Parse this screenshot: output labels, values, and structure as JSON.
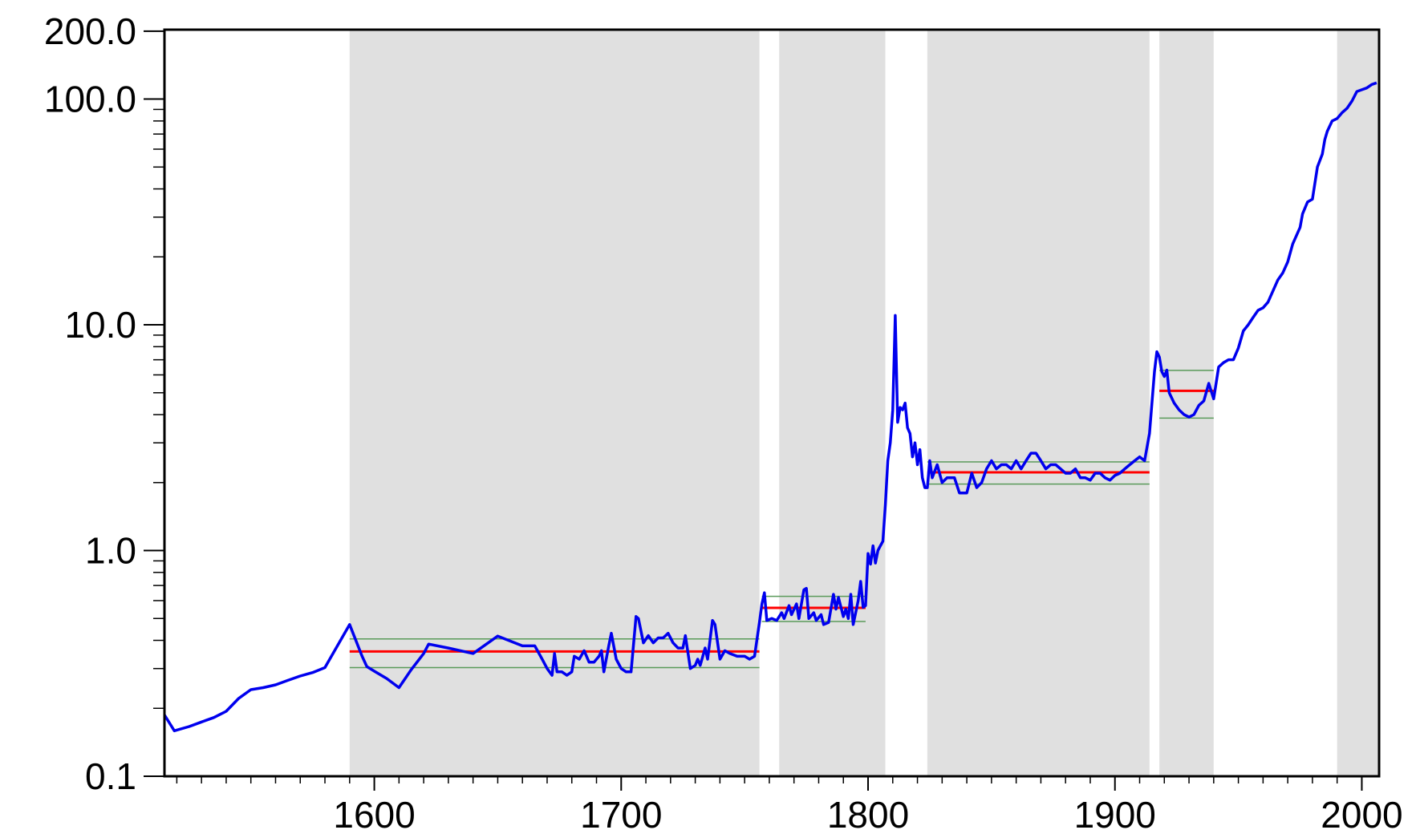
{
  "chart_data": {
    "type": "line",
    "log_y": true,
    "xlim": [
      1515,
      2007
    ],
    "ylim": [
      0.1,
      203
    ],
    "xticks": [
      1600,
      1700,
      1800,
      1900,
      2000
    ],
    "xminor_ticks": [
      1520,
      1530,
      1540,
      1550,
      1560,
      1570,
      1580,
      1590,
      1610,
      1620,
      1630,
      1640,
      1650,
      1660,
      1670,
      1680,
      1690,
      1710,
      1720,
      1730,
      1740,
      1750,
      1760,
      1770,
      1780,
      1790,
      1810,
      1820,
      1830,
      1840,
      1850,
      1860,
      1870,
      1880,
      1890,
      1910,
      1920,
      1930,
      1940,
      1950,
      1960,
      1970,
      1980,
      1990
    ],
    "yticks": [
      0.1,
      {
        "value": 1,
        "label": "1.0"
      },
      {
        "value": 10,
        "label": "10.0"
      },
      {
        "value": 100,
        "label": "100.0"
      },
      {
        "value": 200,
        "label": "200.0"
      }
    ],
    "yminor_ticks": [
      0.2,
      0.3,
      0.4,
      0.5,
      0.6,
      0.7,
      0.8,
      0.9,
      2,
      3,
      4,
      5,
      6,
      7,
      8,
      9,
      20,
      30,
      40,
      50,
      60,
      70,
      80,
      90
    ],
    "shade_color": "#e0e0e0",
    "shaded_periods": [
      [
        1590,
        1756
      ],
      [
        1764,
        1807
      ],
      [
        1824,
        1914
      ],
      [
        1918,
        1940
      ],
      [
        1990,
        2007
      ]
    ],
    "regime_color": "#ff0000",
    "band_color": "#5a9a5a",
    "regimes": [
      {
        "start": 1590,
        "end": 1756,
        "mean": 0.357,
        "lower": 0.303,
        "upper": 0.406
      },
      {
        "start": 1757,
        "end": 1799,
        "mean": 0.557,
        "lower": 0.485,
        "upper": 0.627
      },
      {
        "start": 1824,
        "end": 1914,
        "mean": 2.22,
        "lower": 1.97,
        "upper": 2.47
      },
      {
        "start": 1918,
        "end": 1940,
        "mean": 5.1,
        "lower": 3.86,
        "upper": 6.28
      }
    ],
    "series": [
      {
        "color": "#0000ee",
        "x": [
          1515,
          1519,
          1525,
          1530,
          1535,
          1540,
          1545,
          1550,
          1555,
          1560,
          1565,
          1570,
          1575,
          1580,
          1590,
          1595,
          1597,
          1600,
          1605,
          1610,
          1615,
          1620,
          1622,
          1630,
          1640,
          1650,
          1660,
          1665,
          1668,
          1670,
          1672,
          1673,
          1674,
          1676,
          1678,
          1680,
          1681,
          1683,
          1685,
          1687,
          1689,
          1691,
          1692,
          1693,
          1695,
          1696,
          1698,
          1700,
          1702,
          1704,
          1706,
          1707,
          1709,
          1711,
          1713,
          1715,
          1717,
          1719,
          1721,
          1723,
          1725,
          1726,
          1728,
          1730,
          1731,
          1732,
          1734,
          1735,
          1737,
          1738,
          1740,
          1742,
          1744,
          1747,
          1750,
          1752,
          1754,
          1756,
          1757,
          1758,
          1759,
          1761,
          1763,
          1765,
          1766,
          1768,
          1769,
          1771,
          1772,
          1774,
          1775,
          1776,
          1778,
          1779,
          1781,
          1782,
          1784,
          1786,
          1787,
          1788,
          1790,
          1791,
          1792,
          1793,
          1794,
          1796,
          1797,
          1798,
          1799,
          1800,
          1801,
          1802,
          1803,
          1804,
          1805,
          1806,
          1807,
          1808,
          1809,
          1810,
          1811,
          1812,
          1813,
          1814,
          1815,
          1816,
          1817,
          1818,
          1819,
          1820,
          1821,
          1822,
          1823,
          1824,
          1825,
          1826,
          1828,
          1830,
          1832,
          1835,
          1837,
          1840,
          1842,
          1844,
          1846,
          1848,
          1850,
          1852,
          1854,
          1856,
          1858,
          1860,
          1862,
          1864,
          1866,
          1868,
          1870,
          1872,
          1874,
          1876,
          1878,
          1880,
          1882,
          1884,
          1886,
          1888,
          1890,
          1892,
          1894,
          1896,
          1898,
          1900,
          1902,
          1904,
          1906,
          1908,
          1910,
          1912,
          1914,
          1916,
          1917,
          1918,
          1919,
          1920,
          1921,
          1922,
          1924,
          1926,
          1928,
          1930,
          1932,
          1934,
          1936,
          1938,
          1940,
          1942,
          1944,
          1946,
          1948,
          1950,
          1952,
          1954,
          1956,
          1958,
          1960,
          1962,
          1966,
          1968,
          1970,
          1972,
          1975,
          1976,
          1978,
          1980,
          1982,
          1984,
          1985,
          1986,
          1988,
          1990,
          1992,
          1994,
          1996,
          1998,
          2000,
          2002,
          2004,
          2006
        ],
        "values": [
          0.187,
          0.159,
          0.166,
          0.174,
          0.182,
          0.194,
          0.221,
          0.242,
          0.247,
          0.254,
          0.266,
          0.278,
          0.288,
          0.303,
          0.47,
          0.341,
          0.306,
          0.292,
          0.271,
          0.247,
          0.297,
          0.35,
          0.385,
          0.37,
          0.35,
          0.418,
          0.378,
          0.378,
          0.33,
          0.3,
          0.28,
          0.35,
          0.29,
          0.29,
          0.28,
          0.29,
          0.34,
          0.33,
          0.36,
          0.32,
          0.32,
          0.34,
          0.36,
          0.29,
          0.38,
          0.43,
          0.33,
          0.3,
          0.29,
          0.29,
          0.51,
          0.5,
          0.39,
          0.42,
          0.39,
          0.41,
          0.41,
          0.43,
          0.39,
          0.37,
          0.37,
          0.42,
          0.3,
          0.31,
          0.33,
          0.31,
          0.37,
          0.33,
          0.49,
          0.47,
          0.33,
          0.36,
          0.35,
          0.34,
          0.34,
          0.33,
          0.34,
          0.48,
          0.58,
          0.65,
          0.49,
          0.5,
          0.49,
          0.53,
          0.5,
          0.57,
          0.52,
          0.58,
          0.5,
          0.67,
          0.68,
          0.5,
          0.53,
          0.49,
          0.52,
          0.47,
          0.48,
          0.64,
          0.55,
          0.62,
          0.51,
          0.55,
          0.5,
          0.64,
          0.47,
          0.6,
          0.73,
          0.56,
          0.57,
          0.97,
          0.87,
          1.05,
          0.88,
          1.0,
          1.05,
          1.1,
          1.6,
          2.5,
          3.0,
          4.2,
          11.0,
          3.7,
          4.3,
          4.2,
          4.5,
          3.5,
          3.3,
          2.6,
          3.0,
          2.4,
          2.8,
          2.1,
          1.9,
          1.9,
          2.5,
          2.1,
          2.4,
          2.0,
          2.1,
          2.1,
          1.8,
          1.8,
          2.2,
          1.9,
          2.0,
          2.3,
          2.5,
          2.3,
          2.4,
          2.4,
          2.3,
          2.5,
          2.3,
          2.5,
          2.7,
          2.7,
          2.5,
          2.3,
          2.4,
          2.4,
          2.3,
          2.2,
          2.2,
          2.3,
          2.1,
          2.1,
          2.05,
          2.2,
          2.2,
          2.1,
          2.05,
          2.15,
          2.2,
          2.3,
          2.4,
          2.5,
          2.6,
          2.5,
          3.3,
          6.2,
          7.6,
          7.2,
          6.2,
          5.9,
          6.3,
          5.0,
          4.5,
          4.2,
          4.0,
          3.9,
          4.0,
          4.4,
          4.6,
          5.5,
          4.7,
          6.5,
          6.8,
          7.0,
          7.0,
          7.9,
          9.4,
          10.0,
          10.8,
          11.6,
          11.9,
          12.6,
          15.8,
          17.0,
          19.0,
          22.8,
          27.0,
          31.0,
          35.0,
          36.0,
          50.0,
          57.0,
          66.0,
          72.0,
          80.0,
          82.0,
          87.0,
          91.0,
          98.0,
          108.0,
          110.0,
          112.0,
          116.0,
          118.0
        ]
      }
    ]
  }
}
